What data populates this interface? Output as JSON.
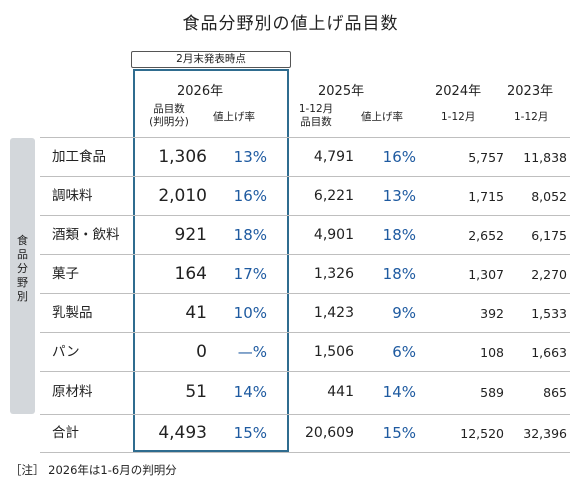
{
  "title": "食品分野別の値上げ品目数",
  "badge": "2月末発表時点",
  "sidebar_label": [
    "食",
    "品",
    "分",
    "野",
    "別"
  ],
  "headers": {
    "y2026": "2026年",
    "y2026_items_line1": "品目数",
    "y2026_items_line2": "(判明分)",
    "y2026_rate": "値上げ率",
    "y2025": "2025年",
    "y2025_items_line1": "1-12月",
    "y2025_items_line2": "品目数",
    "y2025_rate": "値上げ率",
    "y2024": "2024年",
    "y2024_sub": "1-12月",
    "y2023": "2023年",
    "y2023_sub": "1-12月"
  },
  "rows": [
    {
      "name": "加工食品",
      "items2026": "1,306",
      "rate2026": "13%",
      "items2025": "4,791",
      "rate2025": "16%",
      "items2024": "5,757",
      "items2023": "11,838"
    },
    {
      "name": "調味料",
      "items2026": "2,010",
      "rate2026": "16%",
      "items2025": "6,221",
      "rate2025": "13%",
      "items2024": "1,715",
      "items2023": "8,052"
    },
    {
      "name": "酒類・飲料",
      "items2026": "921",
      "rate2026": "18%",
      "items2025": "4,901",
      "rate2025": "18%",
      "items2024": "2,652",
      "items2023": "6,175"
    },
    {
      "name": "菓子",
      "items2026": "164",
      "rate2026": "17%",
      "items2025": "1,326",
      "rate2025": "18%",
      "items2024": "1,307",
      "items2023": "2,270"
    },
    {
      "name": "乳製品",
      "items2026": "41",
      "rate2026": "10%",
      "items2025": "1,423",
      "rate2025": "9%",
      "items2024": "392",
      "items2023": "1,533"
    },
    {
      "name": "パン",
      "items2026": "0",
      "rate2026": "—%",
      "items2025": "1,506",
      "rate2025": "6%",
      "items2024": "108",
      "items2023": "1,663"
    },
    {
      "name": "原材料",
      "items2026": "51",
      "rate2026": "14%",
      "items2025": "441",
      "rate2025": "14%",
      "items2024": "589",
      "items2023": "865"
    }
  ],
  "total": {
    "name": "合計",
    "items2026": "4,493",
    "rate2026": "15%",
    "items2025": "20,609",
    "rate2025": "15%",
    "items2024": "12,520",
    "items2023": "32,396"
  },
  "note": "［注］ 2026年は1-6月の判明分",
  "colors": {
    "accent_box": "#2f6c8f",
    "rate_text": "#1e5aa0",
    "sidebar_bg": "#d3d7db"
  }
}
